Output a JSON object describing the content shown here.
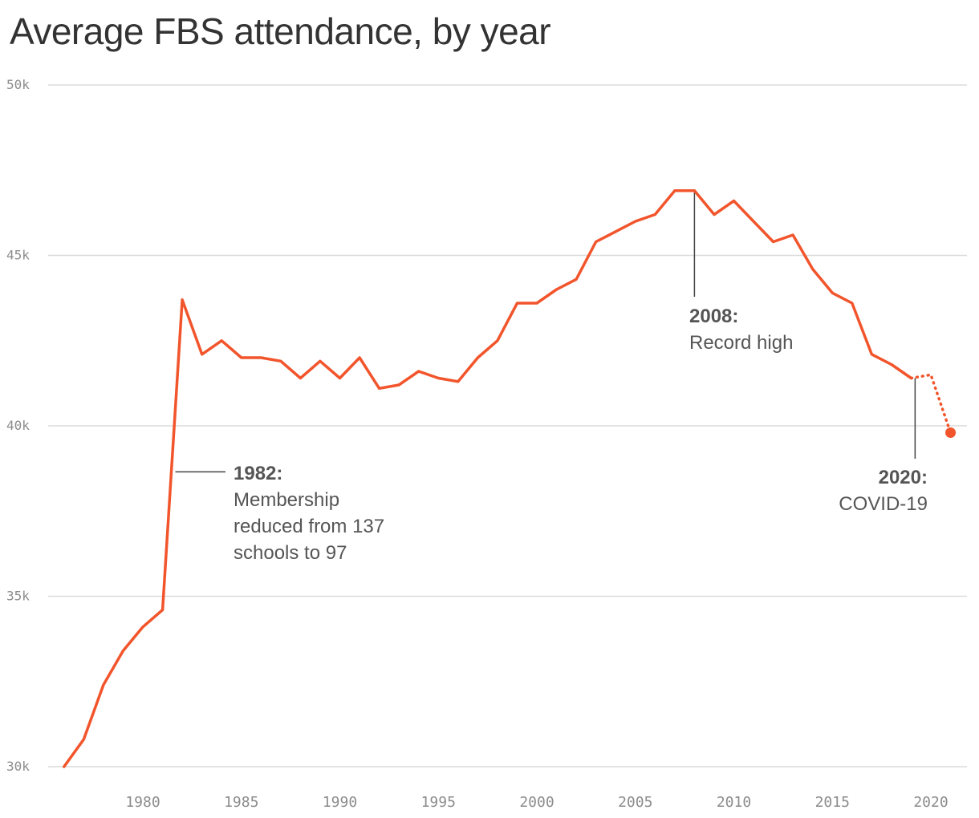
{
  "chart_data": {
    "type": "line",
    "title": "Average FBS attendance, by year",
    "xlabel": "",
    "ylabel": "",
    "xlim": [
      1976,
      2021
    ],
    "ylim": [
      30000,
      50000
    ],
    "y_ticks": [
      {
        "value": 50000,
        "label": "50k"
      },
      {
        "value": 45000,
        "label": "45k"
      },
      {
        "value": 40000,
        "label": "40k"
      },
      {
        "value": 35000,
        "label": "35k"
      },
      {
        "value": 30000,
        "label": "30k"
      }
    ],
    "x_ticks": [
      {
        "value": 1980,
        "label": "1980"
      },
      {
        "value": 1985,
        "label": "1985"
      },
      {
        "value": 1990,
        "label": "1990"
      },
      {
        "value": 1995,
        "label": "1995"
      },
      {
        "value": 2000,
        "label": "2000"
      },
      {
        "value": 2005,
        "label": "2005"
      },
      {
        "value": 2010,
        "label": "2010"
      },
      {
        "value": 2015,
        "label": "2015"
      },
      {
        "value": 2020,
        "label": "2020"
      }
    ],
    "grid": "horizontal",
    "color": "#f2552c",
    "series": [
      {
        "x": [
          1976,
          1977,
          1978,
          1979,
          1980,
          1981,
          1982,
          1983,
          1984,
          1985,
          1986,
          1987,
          1988,
          1989,
          1990,
          1991,
          1992,
          1993,
          1994,
          1995,
          1996,
          1997,
          1998,
          1999,
          2000,
          2001,
          2002,
          2003,
          2004,
          2005,
          2006,
          2007,
          2008,
          2009,
          2010,
          2011,
          2012,
          2013,
          2014,
          2015,
          2016,
          2017,
          2018,
          2019
        ],
        "values": [
          30000,
          30800,
          32400,
          33400,
          34100,
          34600,
          43700,
          42100,
          42500,
          42000,
          42000,
          41900,
          41400,
          41900,
          41400,
          42000,
          41100,
          41200,
          41600,
          41400,
          41300,
          42000,
          42500,
          43600,
          43600,
          44000,
          44300,
          45400,
          45700,
          46000,
          46200,
          46900,
          46900,
          46200,
          46600,
          46000,
          45400,
          45600,
          44600,
          43900,
          43600,
          42100,
          41800,
          41400
        ],
        "style": "solid"
      },
      {
        "x": [
          2019,
          2020,
          2021
        ],
        "values": [
          41400,
          41500,
          39800
        ],
        "style": "dotted",
        "end_marker": "dot"
      }
    ],
    "annotations": [
      {
        "year_label": "1982:",
        "lines": [
          "Membership",
          "reduced from 137",
          "schools to 97"
        ]
      },
      {
        "year_label": "2008:",
        "lines": [
          "Record high"
        ]
      },
      {
        "year_label": "2020:",
        "lines": [
          "COVID-19"
        ]
      }
    ]
  }
}
